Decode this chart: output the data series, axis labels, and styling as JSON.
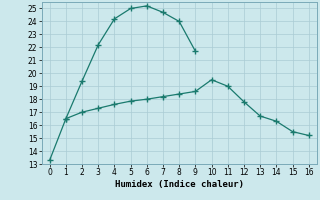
{
  "xlabel": "Humidex (Indice chaleur)",
  "background_color": "#cce8ec",
  "line_color": "#1a7a6e",
  "grid_color": "#aaccd4",
  "xlim": [
    -0.5,
    16.5
  ],
  "ylim": [
    13,
    25.5
  ],
  "xticks": [
    0,
    1,
    2,
    3,
    4,
    5,
    6,
    7,
    8,
    9,
    10,
    11,
    12,
    13,
    14,
    15,
    16
  ],
  "yticks": [
    13,
    14,
    15,
    16,
    17,
    18,
    19,
    20,
    21,
    22,
    23,
    24,
    25
  ],
  "line1_x": [
    0,
    1,
    2,
    3,
    4,
    5,
    6,
    7,
    8,
    9
  ],
  "line1_y": [
    13.3,
    16.5,
    19.4,
    22.2,
    24.2,
    25.0,
    25.2,
    24.7,
    24.0,
    21.7
  ],
  "line2_x": [
    1,
    2,
    3,
    4,
    5,
    6,
    7,
    8,
    9,
    10,
    11,
    12,
    13,
    14,
    15,
    16
  ],
  "line2_y": [
    16.5,
    17.0,
    17.3,
    17.6,
    17.85,
    18.0,
    18.2,
    18.4,
    18.6,
    19.5,
    19.0,
    17.8,
    16.7,
    16.3,
    15.5,
    15.2
  ]
}
